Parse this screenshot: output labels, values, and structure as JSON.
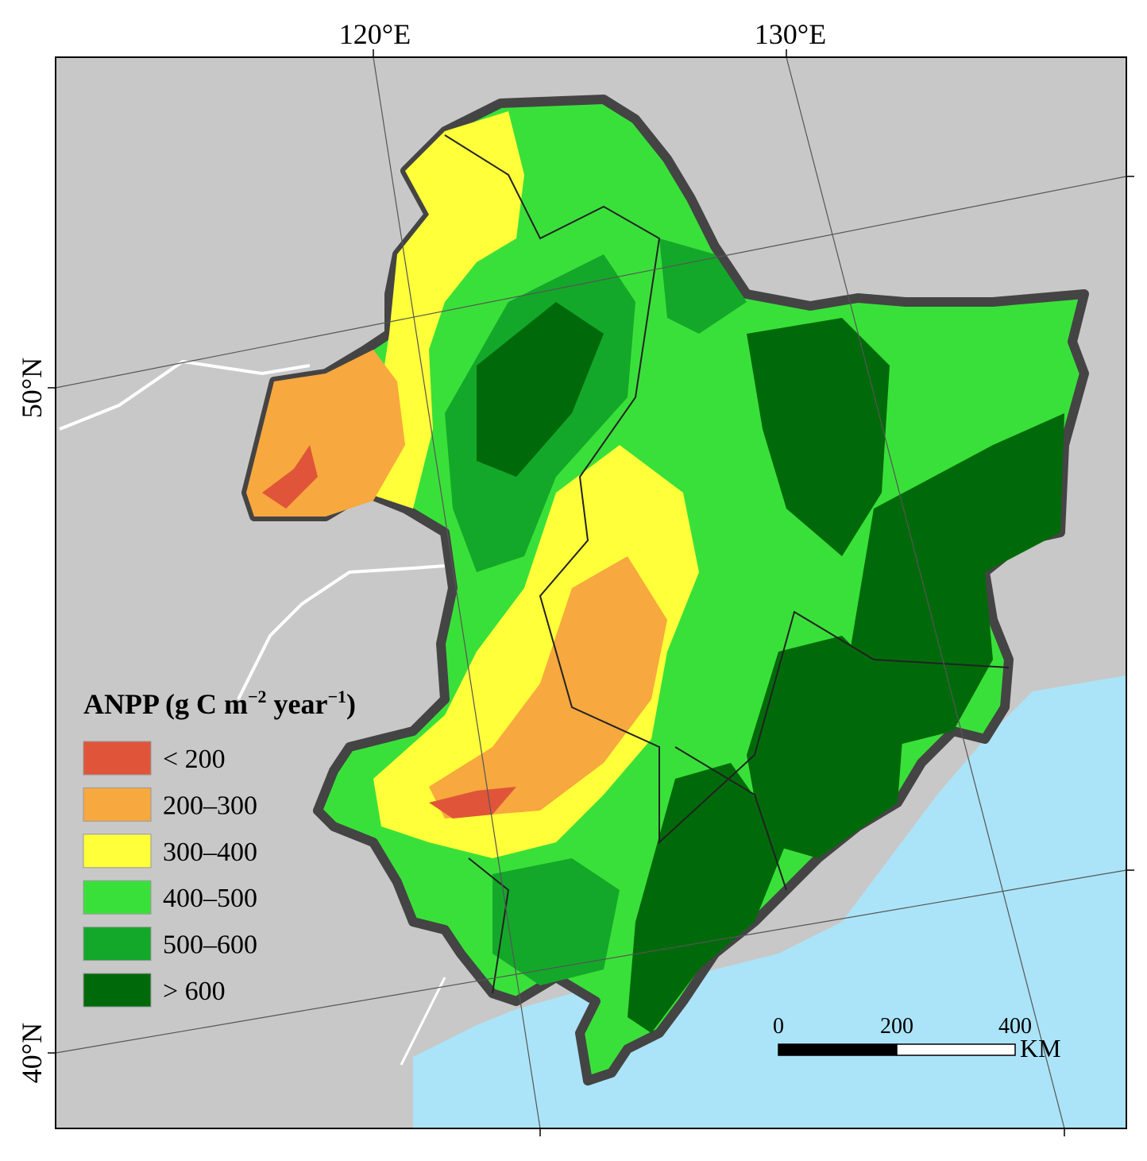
{
  "map": {
    "graticule": {
      "lon_labels": [
        "120°E",
        "130°E"
      ],
      "lat_labels": [
        "50°N",
        "40°N"
      ]
    },
    "legend": {
      "title_parts": [
        "ANPP (g C m",
        "−2",
        " year",
        "−1",
        ")"
      ],
      "items": [
        {
          "label": "< 200",
          "color": "#e0553a"
        },
        {
          "label": "200–300",
          "color": "#f7a83e"
        },
        {
          "label": "300–400",
          "color": "#ffff3a"
        },
        {
          "label": "400–500",
          "color": "#3ae03a"
        },
        {
          "label": "500–600",
          "color": "#14a82a"
        },
        {
          "label": "> 600",
          "color": "#006a0a"
        }
      ]
    },
    "scale_bar": {
      "ticks": [
        0,
        200,
        400
      ],
      "unit": "KM"
    }
  }
}
